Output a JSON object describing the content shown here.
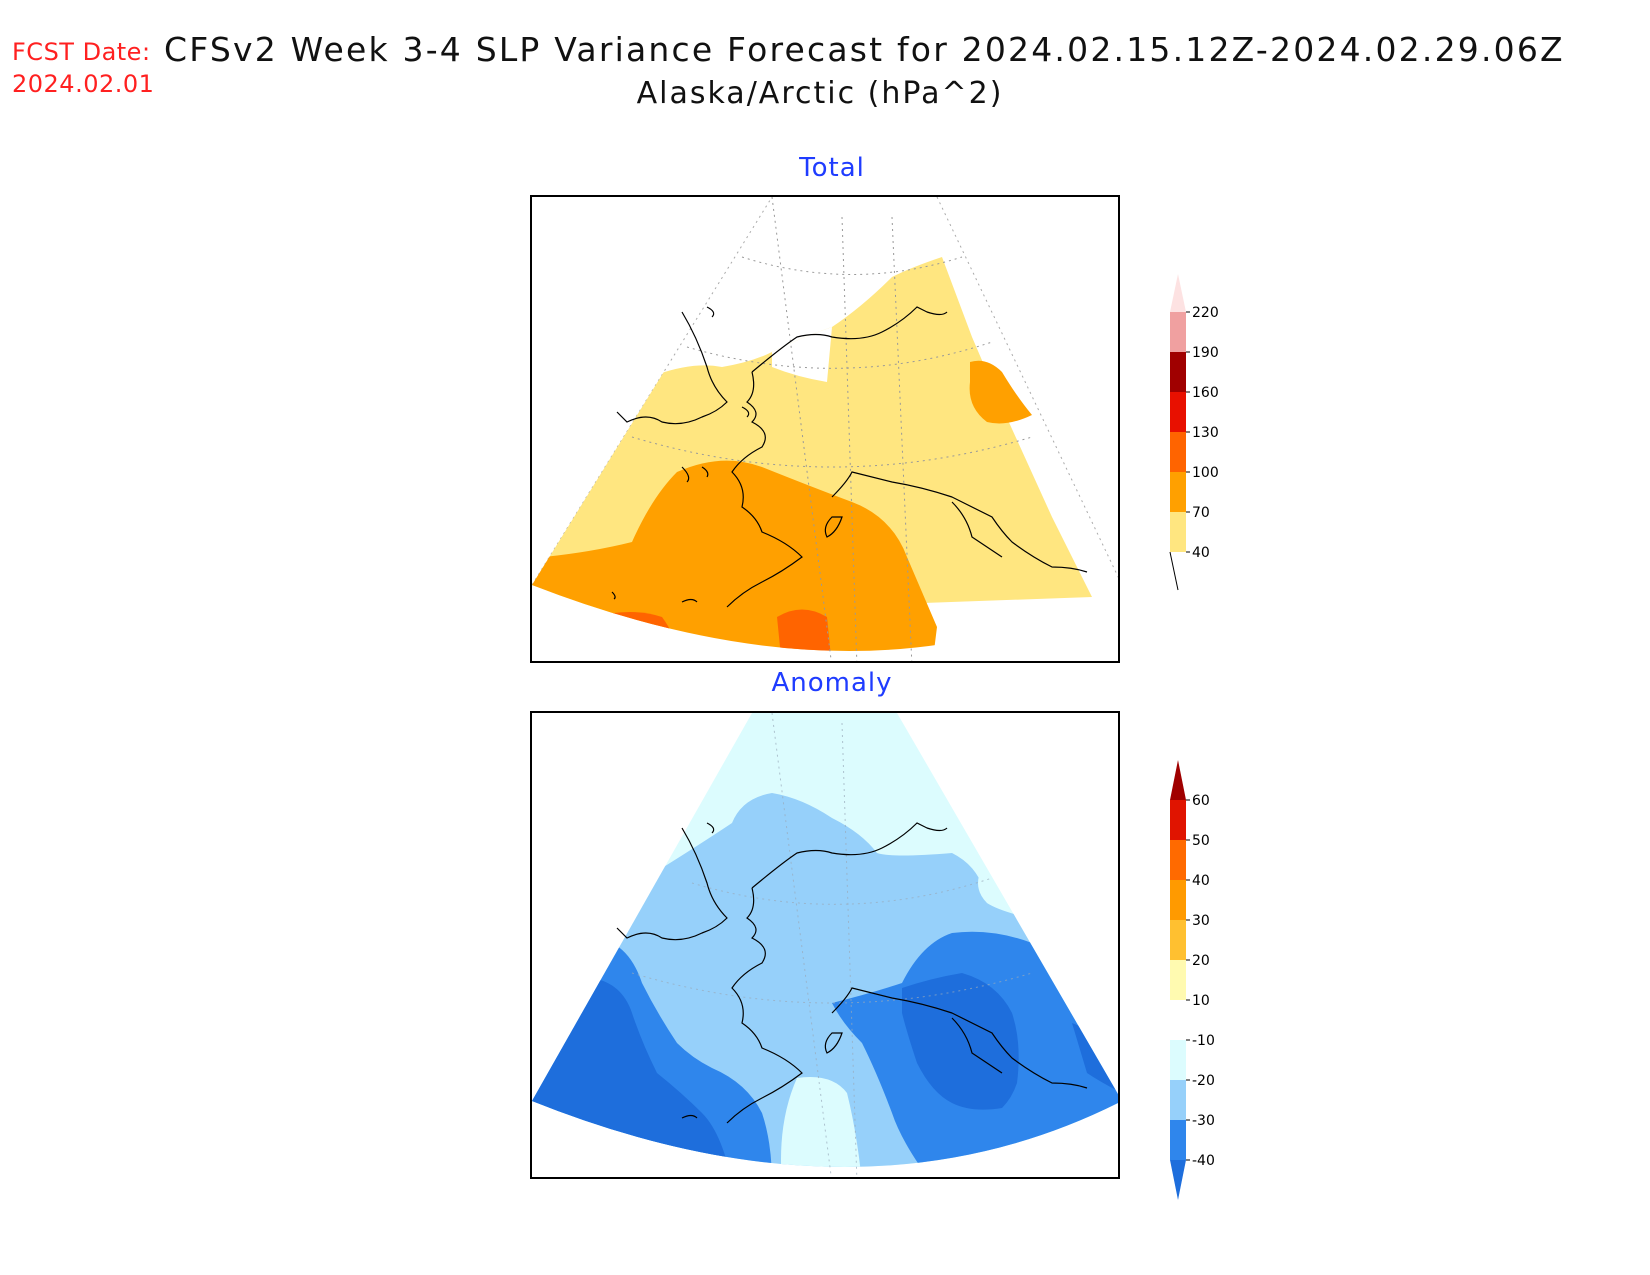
{
  "header": {
    "fcst_label": "FCST Date:",
    "fcst_date": "2024.02.01",
    "title": "CFSv2 Week 3-4 SLP Variance Forecast for 2024.02.15.12Z-2024.02.29.06Z",
    "subtitle": "Alaska/Arctic (hPa^2)"
  },
  "panels": {
    "total": {
      "title": "Total",
      "colorbar_labels": [
        "40",
        "70",
        "100",
        "130",
        "160",
        "190",
        "220"
      ],
      "colorbar_colors": [
        "#ffe680",
        "#ffa000",
        "#ff6400",
        "#e81000",
        "#a00000",
        "#f0a0a0",
        "#fde2e2"
      ]
    },
    "anomaly": {
      "title": "Anomaly",
      "colorbar_labels": [
        "-40",
        "-30",
        "-20",
        "-10",
        "10",
        "20",
        "30",
        "40",
        "50",
        "60"
      ],
      "colorbar_colors": [
        "#1e6edc",
        "#2f86ec",
        "#96d0fa",
        "#dcfcfe",
        "#ffffff",
        "#fffab0",
        "#ffc030",
        "#ff9a00",
        "#ff6a00",
        "#e01400",
        "#a00000"
      ]
    }
  }
}
